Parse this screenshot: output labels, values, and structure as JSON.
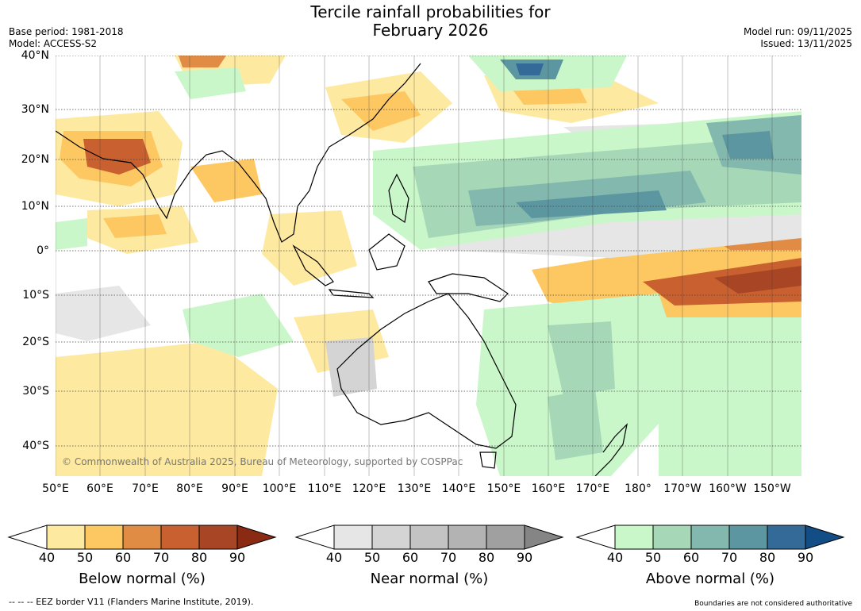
{
  "title_line1": "Tercile rainfall probabilities for",
  "title_line2": "February 2026",
  "base_period": "Base period: 1981-2018",
  "model": "Model: ACCESS-S2",
  "model_run": "Model run: 09/11/2025",
  "issued": "Issued: 13/11/2025",
  "copyright": "© Commonwealth of Australia 2025, Bureau of Meteorology, supported by COSPPac",
  "lat_labels": [
    "40°N",
    "30°N",
    "20°N",
    "10°N",
    "0°",
    "10°S",
    "20°S",
    "30°S",
    "40°S"
  ],
  "lon_labels": [
    "50°E",
    "60°E",
    "70°E",
    "80°E",
    "90°E",
    "100°E",
    "110°E",
    "120°E",
    "130°E",
    "140°E",
    "150°E",
    "160°E",
    "170°E",
    "180°",
    "170°W",
    "160°W",
    "150°W"
  ],
  "colorbars": [
    {
      "title": "Below normal (%)",
      "ticks": [
        "40",
        "50",
        "60",
        "70",
        "80",
        "90"
      ],
      "colors": [
        "#ffffff",
        "#fee9a0",
        "#fdc762",
        "#e08c44",
        "#c8602f",
        "#a74524",
        "#8b2a13"
      ]
    },
    {
      "title": "Near normal (%)",
      "ticks": [
        "40",
        "50",
        "60",
        "70",
        "80",
        "90"
      ],
      "colors": [
        "#ffffff",
        "#e6e6e6",
        "#d4d4d4",
        "#c3c3c3",
        "#b3b3b3",
        "#a0a0a0",
        "#858585"
      ]
    },
    {
      "title": "Above normal (%)",
      "ticks": [
        "40",
        "50",
        "60",
        "70",
        "80",
        "90"
      ],
      "colors": [
        "#ffffff",
        "#c9f7c9",
        "#a6d8b8",
        "#82b8ae",
        "#5c96a0",
        "#336a98",
        "#134d86"
      ]
    }
  ],
  "footer_left": "--  --  -- EEZ border V11 (Flanders Marine Institute, 2019).",
  "footer_right": "Boundaries are not considered authoritative"
}
